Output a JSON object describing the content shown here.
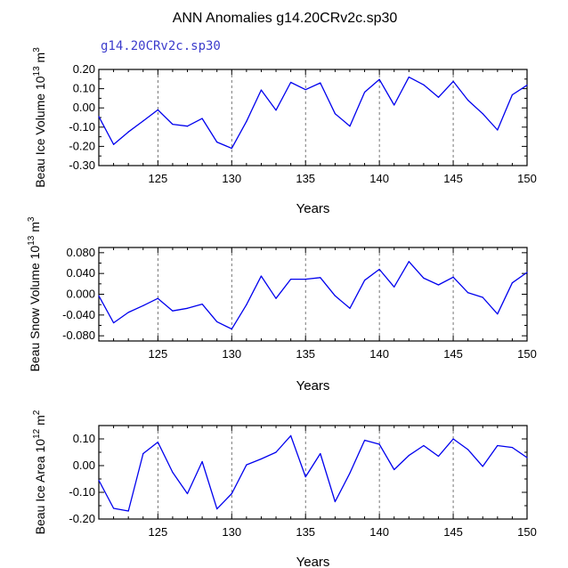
{
  "title": "ANN Anomalies g14.20CRv2c.sp30",
  "series_label": "g14.20CRv2c.sp30",
  "colors": {
    "line": "#0000ee",
    "axis": "#000000",
    "grid": "#555555",
    "series_label": "#3c3ccc"
  },
  "chart_data": [
    {
      "type": "line",
      "id": "ice-volume",
      "ylabel_main": "Beau Ice Volume 10",
      "ylabel_exp": "13",
      "ylabel_unit": " m",
      "ylabel_unit_exp": "3",
      "xlabel": "Years",
      "xlim": [
        121,
        150
      ],
      "ylim": [
        -0.3,
        0.2
      ],
      "xticks": [
        125,
        130,
        135,
        140,
        145,
        150
      ],
      "xtick_labels": [
        "125",
        "130",
        "135",
        "140",
        "145",
        "150"
      ],
      "yticks": [
        -0.3,
        -0.2,
        -0.1,
        0.0,
        0.1,
        0.2
      ],
      "ytick_labels": [
        "-0.30",
        "-0.20",
        "-0.10",
        "0.00",
        "0.10",
        "0.20"
      ],
      "grid_x": [
        125,
        130,
        135,
        140,
        145
      ],
      "x": [
        121,
        122,
        123,
        124,
        125,
        126,
        127,
        128,
        129,
        130,
        131,
        132,
        133,
        134,
        135,
        136,
        137,
        138,
        139,
        140,
        141,
        142,
        143,
        144,
        145,
        146,
        147,
        148,
        149,
        150
      ],
      "y": [
        -0.045,
        -0.19,
        -0.125,
        -0.068,
        -0.01,
        -0.085,
        -0.095,
        -0.055,
        -0.178,
        -0.21,
        -0.07,
        0.093,
        -0.012,
        0.133,
        0.095,
        0.13,
        -0.03,
        -0.095,
        0.082,
        0.148,
        0.015,
        0.16,
        0.12,
        0.055,
        0.138,
        0.04,
        -0.03,
        -0.115,
        0.068,
        0.118
      ]
    },
    {
      "type": "line",
      "id": "snow-volume",
      "ylabel_main": "Beau Snow Volume 10",
      "ylabel_exp": "13",
      "ylabel_unit": " m",
      "ylabel_unit_exp": "3",
      "xlabel": "Years",
      "xlim": [
        121,
        150
      ],
      "ylim": [
        -0.09,
        0.09
      ],
      "xticks": [
        125,
        130,
        135,
        140,
        145,
        150
      ],
      "xtick_labels": [
        "125",
        "130",
        "135",
        "140",
        "145",
        "150"
      ],
      "yticks": [
        -0.08,
        -0.04,
        0.0,
        0.04,
        0.08
      ],
      "ytick_labels": [
        "-0.080",
        "-0.040",
        "0.000",
        "0.040",
        "0.080"
      ],
      "grid_x": [
        125,
        130,
        135,
        140,
        145
      ],
      "x": [
        121,
        122,
        123,
        124,
        125,
        126,
        127,
        128,
        129,
        130,
        131,
        132,
        133,
        134,
        135,
        136,
        137,
        138,
        139,
        140,
        141,
        142,
        143,
        144,
        145,
        146,
        147,
        148,
        149,
        150
      ],
      "y": [
        -0.003,
        -0.055,
        -0.035,
        -0.022,
        -0.008,
        -0.032,
        -0.027,
        -0.019,
        -0.053,
        -0.067,
        -0.02,
        0.035,
        -0.008,
        0.029,
        0.029,
        0.032,
        -0.003,
        -0.027,
        0.027,
        0.048,
        0.014,
        0.063,
        0.031,
        0.018,
        0.033,
        0.003,
        -0.006,
        -0.038,
        0.022,
        0.042
      ]
    },
    {
      "type": "line",
      "id": "ice-area",
      "ylabel_main": "Beau Ice Area 10",
      "ylabel_exp": "12",
      "ylabel_unit": " m",
      "ylabel_unit_exp": "2",
      "xlabel": "Years",
      "xlim": [
        121,
        150
      ],
      "ylim": [
        -0.2,
        0.15
      ],
      "xticks": [
        125,
        130,
        135,
        140,
        145,
        150
      ],
      "xtick_labels": [
        "125",
        "130",
        "135",
        "140",
        "145",
        "150"
      ],
      "yticks": [
        -0.2,
        -0.1,
        0.0,
        0.1
      ],
      "ytick_labels": [
        "-0.20",
        "-0.10",
        "0.00",
        "0.10"
      ],
      "grid_x": [
        125,
        130,
        135,
        140,
        145
      ],
      "x": [
        121,
        122,
        123,
        124,
        125,
        126,
        127,
        128,
        129,
        130,
        131,
        132,
        133,
        134,
        135,
        136,
        137,
        138,
        139,
        140,
        141,
        142,
        143,
        144,
        145,
        146,
        147,
        148,
        149,
        150
      ],
      "y": [
        -0.055,
        -0.16,
        -0.17,
        0.045,
        0.088,
        -0.025,
        -0.105,
        0.015,
        -0.162,
        -0.105,
        0.003,
        0.025,
        0.05,
        0.112,
        -0.042,
        0.045,
        -0.135,
        -0.028,
        0.095,
        0.08,
        -0.015,
        0.038,
        0.075,
        0.035,
        0.1,
        0.06,
        -0.003,
        0.075,
        0.068,
        0.03
      ]
    }
  ]
}
